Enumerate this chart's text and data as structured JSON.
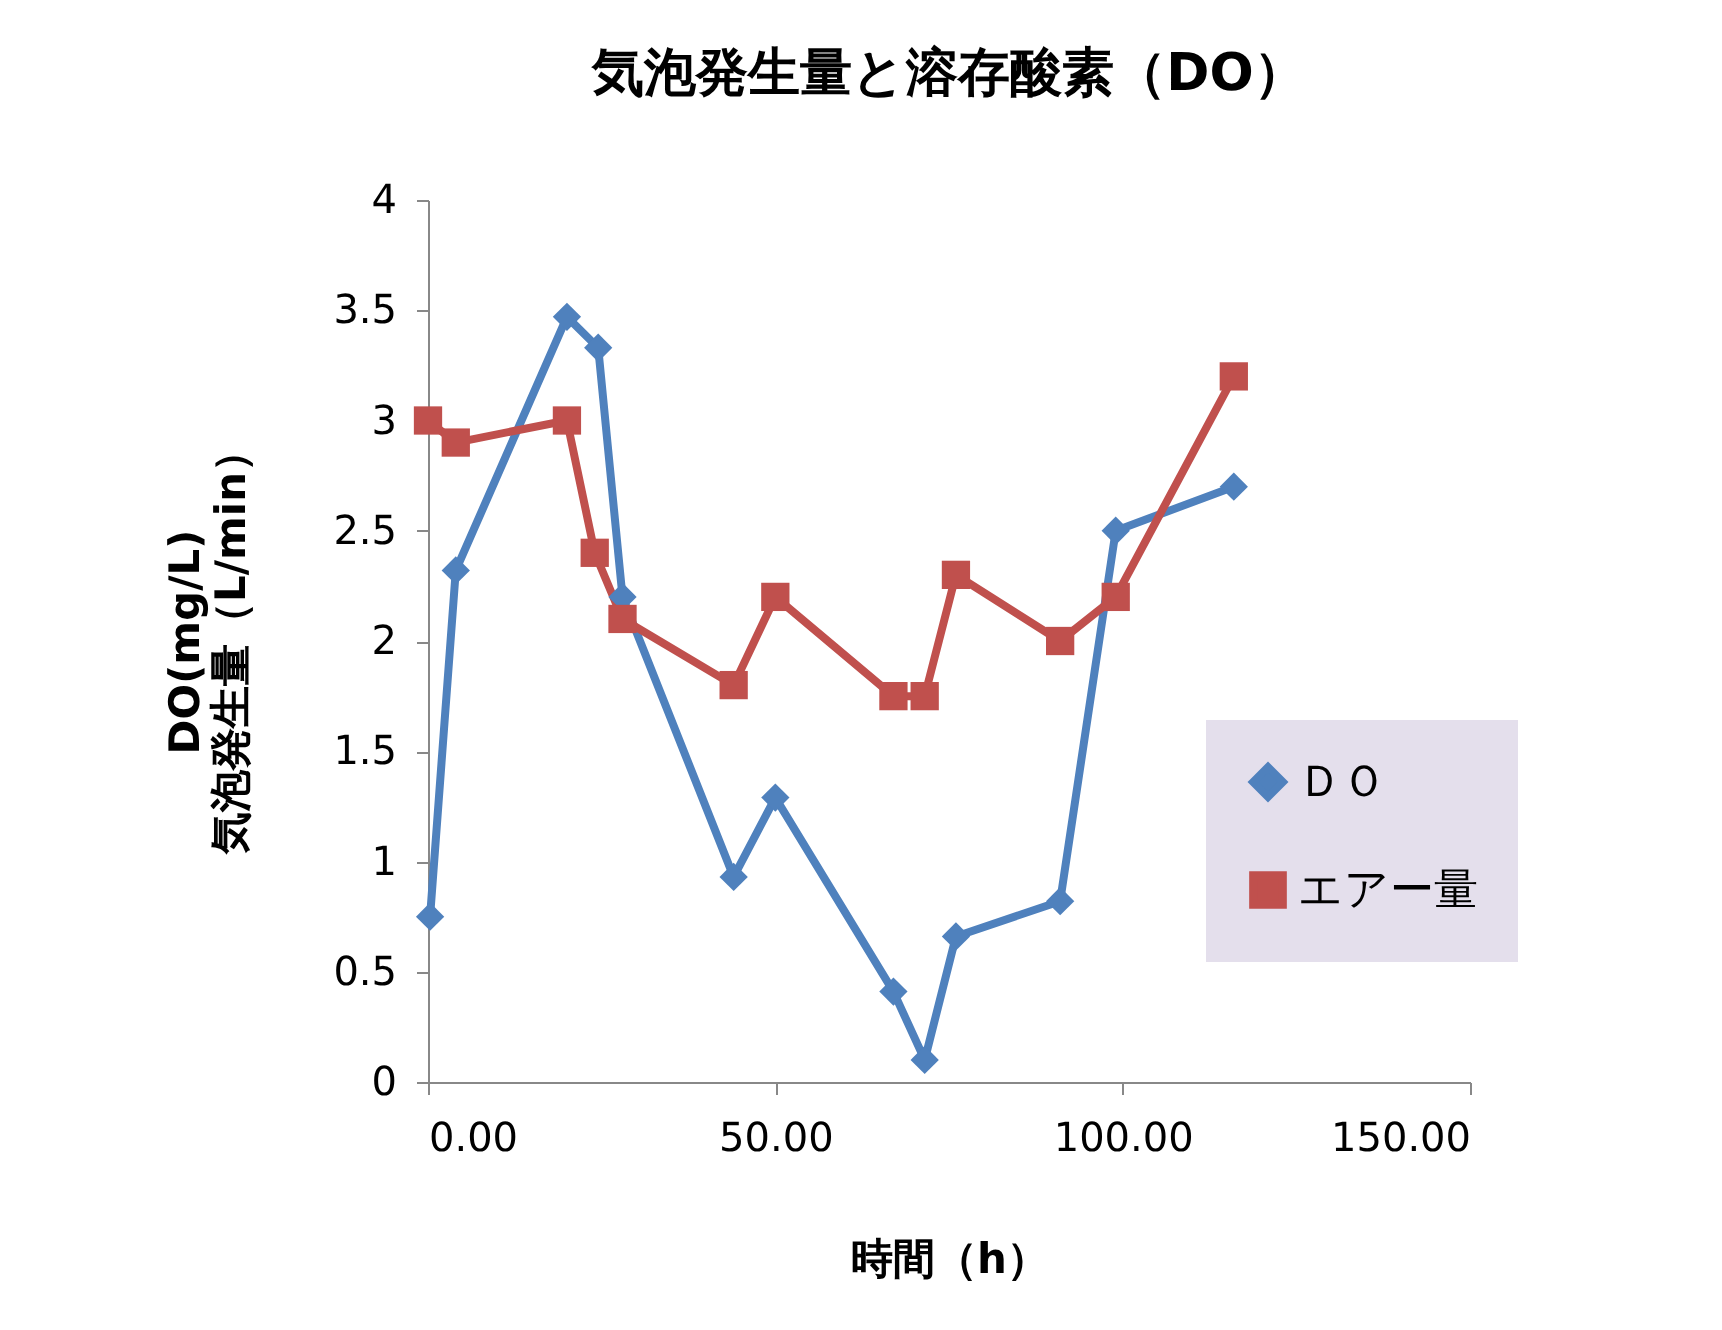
{
  "chart_data": {
    "type": "line",
    "title": "気泡発生量と溶存酸素（DO）",
    "xlabel": "時間（h）",
    "ylabel": "DO(mg/L)\n気泡発生量（L/min）",
    "series": [
      {
        "name": "ＤＯ",
        "color": "#4f81bd",
        "marker": "diamond",
        "x": [
          0.3,
          4,
          20,
          24.5,
          28,
          44,
          50,
          67,
          71.5,
          76,
          91,
          99,
          116
        ],
        "values": [
          0.75,
          2.32,
          3.47,
          3.33,
          2.2,
          0.93,
          1.29,
          0.41,
          0.1,
          0.66,
          0.82,
          2.5,
          2.7
        ]
      },
      {
        "name": "エアー量",
        "color": "#c0504d",
        "marker": "square",
        "x": [
          0,
          4,
          20,
          24,
          28,
          44,
          50,
          67,
          71.5,
          76,
          91,
          99,
          116
        ],
        "values": [
          3.0,
          2.9,
          3.0,
          2.4,
          2.1,
          1.8,
          2.2,
          1.75,
          1.75,
          2.3,
          2.0,
          2.2,
          3.2
        ]
      }
    ],
    "xlim": [
      0,
      150
    ],
    "xticks": [
      {
        "value": 0,
        "label": "0.00"
      },
      {
        "value": 50,
        "label": "50.00"
      },
      {
        "value": 100,
        "label": "100.00"
      },
      {
        "value": 150,
        "label": "150.00"
      }
    ],
    "ylim": [
      0,
      4
    ],
    "yticks": [
      0,
      0.5,
      1,
      1.5,
      2,
      2.5,
      3,
      3.5,
      4
    ],
    "grid": false,
    "legend": "right"
  }
}
